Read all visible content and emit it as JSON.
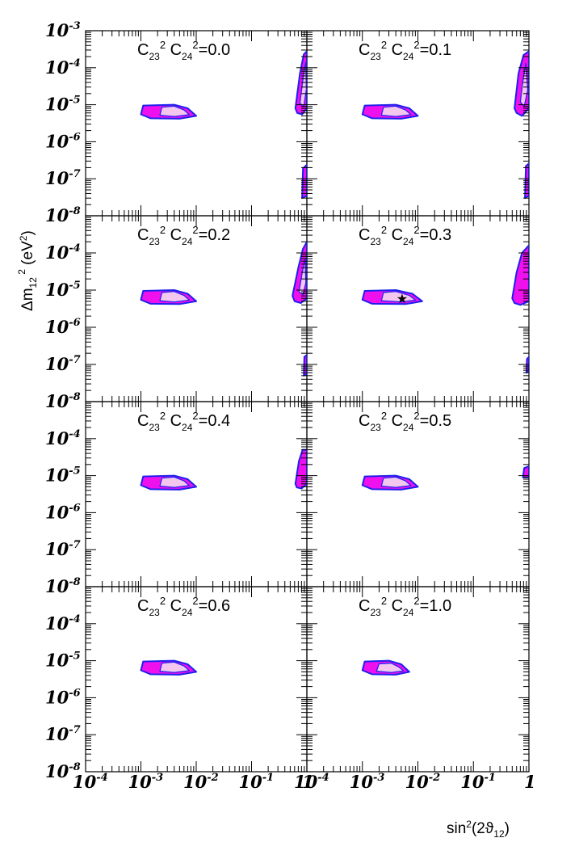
{
  "chart_data": {
    "type": "contour",
    "layout": "4 rows x 2 columns of panels sharing axes",
    "x_axis": {
      "label": "sin²(2ϑ₁₂)",
      "scale": "log",
      "range": [
        0.0001,
        1
      ],
      "tick_labels": [
        {
          "value": 0.0001,
          "base": "10",
          "exp": "-4"
        },
        {
          "value": 0.001,
          "base": "10",
          "exp": "-3"
        },
        {
          "value": 0.01,
          "base": "10",
          "exp": "-2"
        },
        {
          "value": 0.1,
          "base": "10",
          "exp": "-1"
        },
        {
          "value": 1,
          "base": "1",
          "exp": ""
        }
      ]
    },
    "y_axis": {
      "label": "Δm₁₂² (eV²)",
      "scale": "log",
      "range": [
        1e-08,
        0.001
      ],
      "tick_labels": [
        {
          "value": 0.001,
          "base": "10",
          "exp": "-3"
        },
        {
          "value": 0.0001,
          "base": "10",
          "exp": "-4"
        },
        {
          "value": 1e-05,
          "base": "10",
          "exp": "-5"
        },
        {
          "value": 1e-06,
          "base": "10",
          "exp": "-6"
        },
        {
          "value": 1e-07,
          "base": "10",
          "exp": "-7"
        },
        {
          "value": 1e-08,
          "base": "10",
          "exp": "-8"
        }
      ]
    },
    "colors": {
      "outer_region": "#ee11ee",
      "inner_region": "#f5c6ee",
      "outline": "#1f1fee"
    },
    "best_fit": {
      "panel": 3,
      "x": 0.005,
      "y": 6e-06,
      "marker": "★"
    },
    "panels": [
      {
        "label_value": "0.0",
        "regions": [
          {
            "kind": "outer",
            "points": [
              [
                0.001,
                5.5e-06
              ],
              [
                0.0011,
                9.5e-06
              ],
              [
                0.004,
                1e-05
              ],
              [
                0.007,
                8e-06
              ],
              [
                0.01,
                5e-06
              ],
              [
                0.005,
                4.2e-06
              ],
              [
                0.0015,
                4.3e-06
              ]
            ]
          },
          {
            "kind": "inner",
            "points": [
              [
                0.0022,
                5.2e-06
              ],
              [
                0.0024,
                8.6e-06
              ],
              [
                0.004,
                9.2e-06
              ],
              [
                0.006,
                7.2e-06
              ],
              [
                0.0075,
                5.4e-06
              ],
              [
                0.004,
                4.8e-06
              ]
            ]
          },
          {
            "kind": "outer",
            "points": [
              [
                0.62,
                8e-06
              ],
              [
                0.75,
                7e-05
              ],
              [
                0.88,
                0.00023
              ],
              [
                1,
                0.00028
              ],
              [
                1,
                8e-06
              ],
              [
                0.82,
                5.5e-06
              ],
              [
                0.67,
                6e-06
              ]
            ]
          },
          {
            "kind": "inner",
            "points": [
              [
                0.75,
                1.1e-05
              ],
              [
                0.86,
                5.5e-05
              ],
              [
                0.96,
                0.00014
              ],
              [
                0.98,
                2.6e-05
              ],
              [
                0.88,
                9e-06
              ]
            ]
          },
          {
            "kind": "outer",
            "points": [
              [
                0.82,
                3e-08
              ],
              [
                0.85,
                1.9e-07
              ],
              [
                1,
                2.4e-07
              ],
              [
                1,
                3.5e-08
              ]
            ]
          }
        ]
      },
      {
        "label_value": "0.1",
        "regions": [
          {
            "kind": "outer",
            "points": [
              [
                0.001,
                5.5e-06
              ],
              [
                0.0011,
                9.5e-06
              ],
              [
                0.004,
                1e-05
              ],
              [
                0.007,
                8e-06
              ],
              [
                0.01,
                5e-06
              ],
              [
                0.005,
                4.2e-06
              ],
              [
                0.0015,
                4.3e-06
              ]
            ]
          },
          {
            "kind": "inner",
            "points": [
              [
                0.0022,
                5.2e-06
              ],
              [
                0.0024,
                8.6e-06
              ],
              [
                0.004,
                9.2e-06
              ],
              [
                0.006,
                7.2e-06
              ],
              [
                0.0075,
                5.4e-06
              ],
              [
                0.004,
                4.8e-06
              ]
            ]
          },
          {
            "kind": "outer",
            "points": [
              [
                0.55,
                8e-06
              ],
              [
                0.65,
                7e-05
              ],
              [
                0.8,
                0.00022
              ],
              [
                1,
                0.00028
              ],
              [
                1,
                8e-06
              ],
              [
                0.75,
                5e-06
              ],
              [
                0.6,
                6e-06
              ]
            ]
          },
          {
            "kind": "inner",
            "points": [
              [
                0.7,
                1.2e-05
              ],
              [
                0.78,
                4.5e-05
              ],
              [
                0.88,
                0.00013
              ],
              [
                0.95,
                2.5e-05
              ],
              [
                0.82,
                9e-06
              ]
            ]
          },
          {
            "kind": "outer",
            "points": [
              [
                0.85,
                3e-08
              ],
              [
                0.88,
                2.2e-07
              ],
              [
                1,
                2.6e-07
              ],
              [
                1,
                3.5e-08
              ]
            ]
          }
        ]
      },
      {
        "label_value": "0.2",
        "regions": [
          {
            "kind": "outer",
            "points": [
              [
                0.001,
                5.5e-06
              ],
              [
                0.0011,
                9.5e-06
              ],
              [
                0.004,
                1e-05
              ],
              [
                0.007,
                8e-06
              ],
              [
                0.01,
                5e-06
              ],
              [
                0.005,
                4.2e-06
              ],
              [
                0.0015,
                4.3e-06
              ]
            ]
          },
          {
            "kind": "inner",
            "points": [
              [
                0.0022,
                5.2e-06
              ],
              [
                0.0024,
                8.6e-06
              ],
              [
                0.004,
                9.2e-06
              ],
              [
                0.006,
                7.2e-06
              ],
              [
                0.0075,
                5.4e-06
              ],
              [
                0.004,
                4.8e-06
              ]
            ]
          },
          {
            "kind": "outer",
            "points": [
              [
                0.55,
                7e-06
              ],
              [
                0.7,
                4e-05
              ],
              [
                0.85,
                0.00013
              ],
              [
                1,
                0.0002
              ],
              [
                1,
                6e-06
              ],
              [
                0.78,
                4.5e-06
              ],
              [
                0.6,
                5e-06
              ]
            ]
          },
          {
            "kind": "inner",
            "points": [
              [
                0.72,
                9e-06
              ],
              [
                0.82,
                2.8e-05
              ],
              [
                0.93,
                7e-05
              ],
              [
                0.96,
                1.6e-05
              ],
              [
                0.85,
                7.5e-06
              ]
            ]
          },
          {
            "kind": "outer",
            "points": [
              [
                0.88,
                5e-08
              ],
              [
                0.9,
                1.6e-07
              ],
              [
                1,
                1.8e-07
              ],
              [
                1,
                5.5e-08
              ]
            ]
          }
        ]
      },
      {
        "label_value": "0.3",
        "regions": [
          {
            "kind": "outer",
            "points": [
              [
                0.001,
                5.5e-06
              ],
              [
                0.0011,
                9.5e-06
              ],
              [
                0.004,
                1e-05
              ],
              [
                0.008,
                8e-06
              ],
              [
                0.012,
                5e-06
              ],
              [
                0.006,
                4.2e-06
              ],
              [
                0.0015,
                4.3e-06
              ]
            ]
          },
          {
            "kind": "inner",
            "points": [
              [
                0.0022,
                5.2e-06
              ],
              [
                0.0024,
                8.6e-06
              ],
              [
                0.004,
                9.2e-06
              ],
              [
                0.007,
                7.2e-06
              ],
              [
                0.009,
                5.4e-06
              ],
              [
                0.005,
                4.8e-06
              ]
            ]
          },
          {
            "kind": "outer",
            "points": [
              [
                0.5,
                6e-06
              ],
              [
                0.6,
                3e-05
              ],
              [
                0.75,
                0.0001
              ],
              [
                1,
                0.00016
              ],
              [
                1,
                5e-06
              ],
              [
                0.7,
                4e-06
              ],
              [
                0.55,
                4.5e-06
              ]
            ]
          },
          {
            "kind": "outer",
            "points": [
              [
                0.9,
                6e-08
              ],
              [
                0.92,
                1.4e-07
              ],
              [
                1,
                1.6e-07
              ],
              [
                1,
                6.5e-08
              ]
            ]
          }
        ]
      },
      {
        "label_value": "0.4",
        "regions": [
          {
            "kind": "outer",
            "points": [
              [
                0.001,
                5.5e-06
              ],
              [
                0.0011,
                9.5e-06
              ],
              [
                0.004,
                1e-05
              ],
              [
                0.007,
                8e-06
              ],
              [
                0.01,
                5e-06
              ],
              [
                0.005,
                4.2e-06
              ],
              [
                0.0015,
                4.3e-06
              ]
            ]
          },
          {
            "kind": "inner",
            "points": [
              [
                0.0022,
                5.2e-06
              ],
              [
                0.0024,
                8.6e-06
              ],
              [
                0.004,
                9.2e-06
              ],
              [
                0.006,
                7.2e-06
              ],
              [
                0.0075,
                5.4e-06
              ],
              [
                0.004,
                4.8e-06
              ]
            ]
          },
          {
            "kind": "outer",
            "points": [
              [
                0.62,
                6e-06
              ],
              [
                0.72,
                2.5e-05
              ],
              [
                0.84,
                5e-05
              ],
              [
                1,
                5e-05
              ],
              [
                1,
                6e-06
              ],
              [
                0.8,
                4.5e-06
              ],
              [
                0.66,
                4.8e-06
              ]
            ]
          }
        ]
      },
      {
        "label_value": "0.5",
        "regions": [
          {
            "kind": "outer",
            "points": [
              [
                0.001,
                5.5e-06
              ],
              [
                0.0011,
                9.5e-06
              ],
              [
                0.004,
                1e-05
              ],
              [
                0.007,
                8e-06
              ],
              [
                0.01,
                5e-06
              ],
              [
                0.005,
                4.2e-06
              ],
              [
                0.0015,
                4.3e-06
              ]
            ]
          },
          {
            "kind": "inner",
            "points": [
              [
                0.0022,
                5.2e-06
              ],
              [
                0.0024,
                8.6e-06
              ],
              [
                0.004,
                9.2e-06
              ],
              [
                0.006,
                7.2e-06
              ],
              [
                0.0075,
                5.4e-06
              ],
              [
                0.004,
                4.8e-06
              ]
            ]
          },
          {
            "kind": "outer",
            "points": [
              [
                0.78,
                9e-06
              ],
              [
                0.82,
                1.6e-05
              ],
              [
                1,
                1.8e-05
              ],
              [
                1,
                9e-06
              ]
            ]
          }
        ]
      },
      {
        "label_value": "0.6",
        "regions": [
          {
            "kind": "outer",
            "points": [
              [
                0.001,
                5.5e-06
              ],
              [
                0.0011,
                9.5e-06
              ],
              [
                0.004,
                1e-05
              ],
              [
                0.007,
                8e-06
              ],
              [
                0.01,
                5e-06
              ],
              [
                0.005,
                4.2e-06
              ],
              [
                0.0015,
                4.3e-06
              ]
            ]
          },
          {
            "kind": "inner",
            "points": [
              [
                0.0022,
                5.2e-06
              ],
              [
                0.0024,
                8.6e-06
              ],
              [
                0.004,
                9.2e-06
              ],
              [
                0.006,
                7.2e-06
              ],
              [
                0.0075,
                5.4e-06
              ],
              [
                0.004,
                4.8e-06
              ]
            ]
          }
        ]
      },
      {
        "label_value": "1.0",
        "regions": [
          {
            "kind": "outer",
            "points": [
              [
                0.001,
                5.5e-06
              ],
              [
                0.0011,
                9.5e-06
              ],
              [
                0.003,
                1e-05
              ],
              [
                0.005,
                8e-06
              ],
              [
                0.007,
                5e-06
              ],
              [
                0.004,
                4.2e-06
              ],
              [
                0.0015,
                4.3e-06
              ]
            ]
          },
          {
            "kind": "inner",
            "points": [
              [
                0.0018,
                5.2e-06
              ],
              [
                0.002,
                8.2e-06
              ],
              [
                0.0033,
                8.6e-06
              ],
              [
                0.0045,
                6.8e-06
              ],
              [
                0.0055,
                5.3e-06
              ],
              [
                0.0033,
                4.8e-06
              ]
            ]
          }
        ]
      }
    ]
  }
}
